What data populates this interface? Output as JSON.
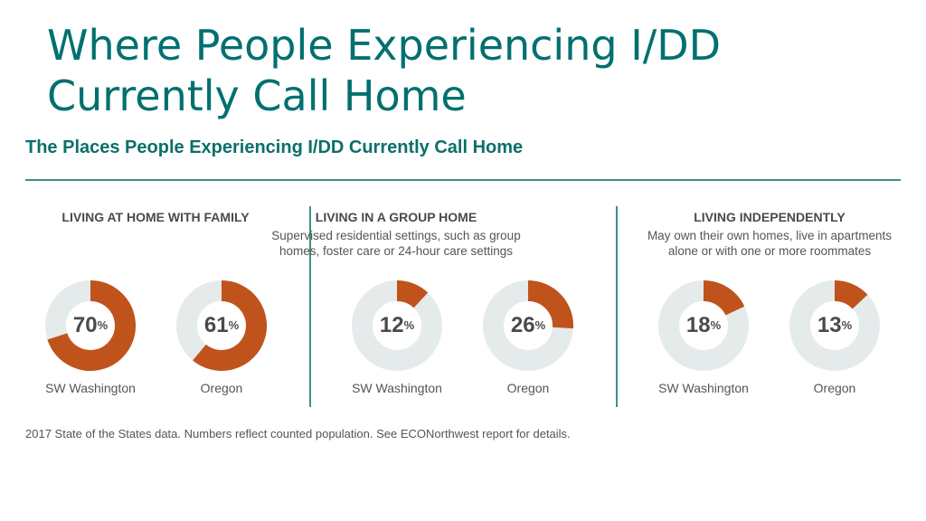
{
  "slide": {
    "title_line1": "Where People Experiencing I/DD",
    "title_line2": "Currently Call Home"
  },
  "chart_data": {
    "type": "pie",
    "title": "The Places People Experiencing I/DD Currently Call Home",
    "ring_color": "#e5ebeb",
    "fill_color": "#c0531c",
    "groups": [
      {
        "heading": "LIVING AT HOME WITH FAMILY",
        "description": [
          "",
          ""
        ],
        "items": [
          {
            "label": "SW Washington",
            "value": 70,
            "value_text": "70",
            "unit": "%"
          },
          {
            "label": "Oregon",
            "value": 61,
            "value_text": "61",
            "unit": "%"
          }
        ]
      },
      {
        "heading": "LIVING IN A GROUP HOME",
        "description": [
          "Supervised residential settings, such as group",
          "homes, foster care or 24-hour care settings"
        ],
        "items": [
          {
            "label": "SW Washington",
            "value": 12,
            "value_text": "12",
            "unit": "%"
          },
          {
            "label": "Oregon",
            "value": 26,
            "value_text": "26",
            "unit": "%"
          }
        ]
      },
      {
        "heading": "LIVING INDEPENDENTLY",
        "description": [
          "May own their own homes, live in apartments",
          "alone or with one or more roommates"
        ],
        "items": [
          {
            "label": "SW Washington",
            "value": 18,
            "value_text": "18",
            "unit": "%"
          },
          {
            "label": "Oregon",
            "value": 13,
            "value_text": "13",
            "unit": "%"
          }
        ]
      }
    ]
  },
  "footnote": "2017 State of the States data. Numbers reflect counted population. See ECONorthwest report for details."
}
